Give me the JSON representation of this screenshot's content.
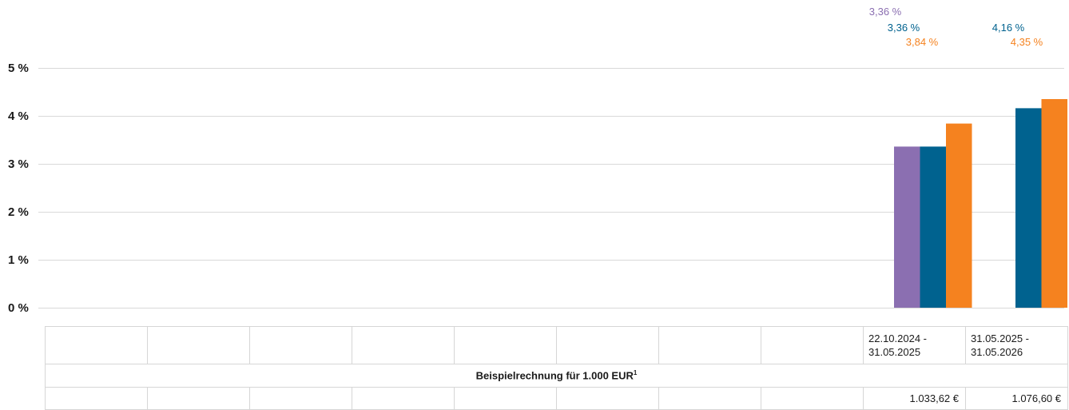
{
  "chart_data": {
    "type": "bar",
    "categories": [
      "",
      "",
      "",
      "",
      "",
      "",
      "",
      "",
      "22.10.2024 - 31.05.2025",
      "31.05.2025 - 31.05.2026"
    ],
    "series": [
      {
        "color": "#8b6fb1",
        "values": [
          null,
          null,
          null,
          null,
          null,
          null,
          null,
          null,
          3.36,
          null
        ]
      },
      {
        "color": "#00628f",
        "values": [
          null,
          null,
          null,
          null,
          null,
          null,
          null,
          null,
          3.36,
          4.16
        ]
      },
      {
        "color": "#f5821f",
        "values": [
          null,
          null,
          null,
          null,
          null,
          null,
          null,
          null,
          3.84,
          4.35
        ]
      }
    ],
    "data_labels": [
      {
        "series": 0,
        "category": 8,
        "text": "3,36 %"
      },
      {
        "series": 1,
        "category": 8,
        "text": "3,36 %"
      },
      {
        "series": 2,
        "category": 8,
        "text": "3,84 %"
      },
      {
        "series": 1,
        "category": 9,
        "text": "4,16 %"
      },
      {
        "series": 2,
        "category": 9,
        "text": "4,35 %"
      }
    ],
    "ylim": [
      0,
      5
    ],
    "yticks": [
      0,
      1,
      2,
      3,
      4,
      5
    ],
    "ytick_labels": [
      "0 %",
      "1 %",
      "2 %",
      "3 %",
      "4 %",
      "5 %"
    ],
    "grid": true,
    "title": "",
    "xlabel": "",
    "ylabel": ""
  },
  "table": {
    "periods": [
      [
        "",
        ""
      ],
      [
        "",
        ""
      ],
      [
        "",
        ""
      ],
      [
        "",
        ""
      ],
      [
        "",
        ""
      ],
      [
        "",
        ""
      ],
      [
        "",
        ""
      ],
      [
        "",
        ""
      ],
      [
        "22.10.2024 -",
        "31.05.2025"
      ],
      [
        "31.05.2025 -",
        "31.05.2026"
      ]
    ],
    "title": "Beispielrechnung für 1.000 EUR",
    "title_footnote": "1",
    "values": [
      "",
      "",
      "",
      "",
      "",
      "",
      "",
      "",
      "1.033,62 €",
      "1.076,60 €"
    ]
  }
}
